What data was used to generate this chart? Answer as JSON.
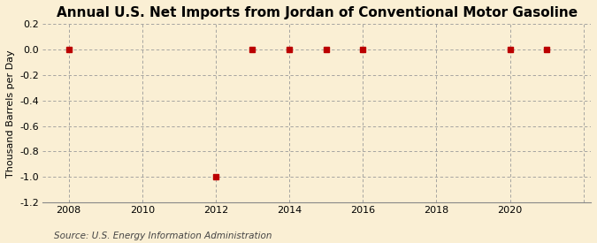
{
  "title": "Annual U.S. Net Imports from Jordan of Conventional Motor Gasoline",
  "ylabel": "Thousand Barrels per Day",
  "source_text": "Source: U.S. Energy Information Administration",
  "background_color": "#faefd4",
  "plot_background_color": "#faefd4",
  "data_years": [
    2008,
    2012,
    2013,
    2014,
    2015,
    2016,
    2020,
    2021
  ],
  "data_values": [
    0,
    -1.0,
    0,
    0,
    0,
    0,
    0,
    0
  ],
  "marker_color": "#bb0000",
  "marker_size": 4,
  "xlim": [
    2007.3,
    2022.2
  ],
  "ylim": [
    -1.2,
    0.2
  ],
  "yticks": [
    0.2,
    0.0,
    -0.2,
    -0.4,
    -0.6,
    -0.8,
    -1.0,
    -1.2
  ],
  "ytick_labels": [
    "0.2",
    "0.0",
    "-0.2",
    "-0.4",
    "-0.6",
    "-0.8",
    "-1.0",
    "-1.2"
  ],
  "xticks": [
    2008,
    2010,
    2012,
    2014,
    2016,
    2018,
    2020
  ],
  "grid_color": "#999999",
  "vgrid_years": [
    2008,
    2010,
    2012,
    2014,
    2016,
    2018,
    2020,
    2022
  ],
  "title_fontsize": 11,
  "label_fontsize": 8,
  "tick_fontsize": 8,
  "source_fontsize": 7.5
}
